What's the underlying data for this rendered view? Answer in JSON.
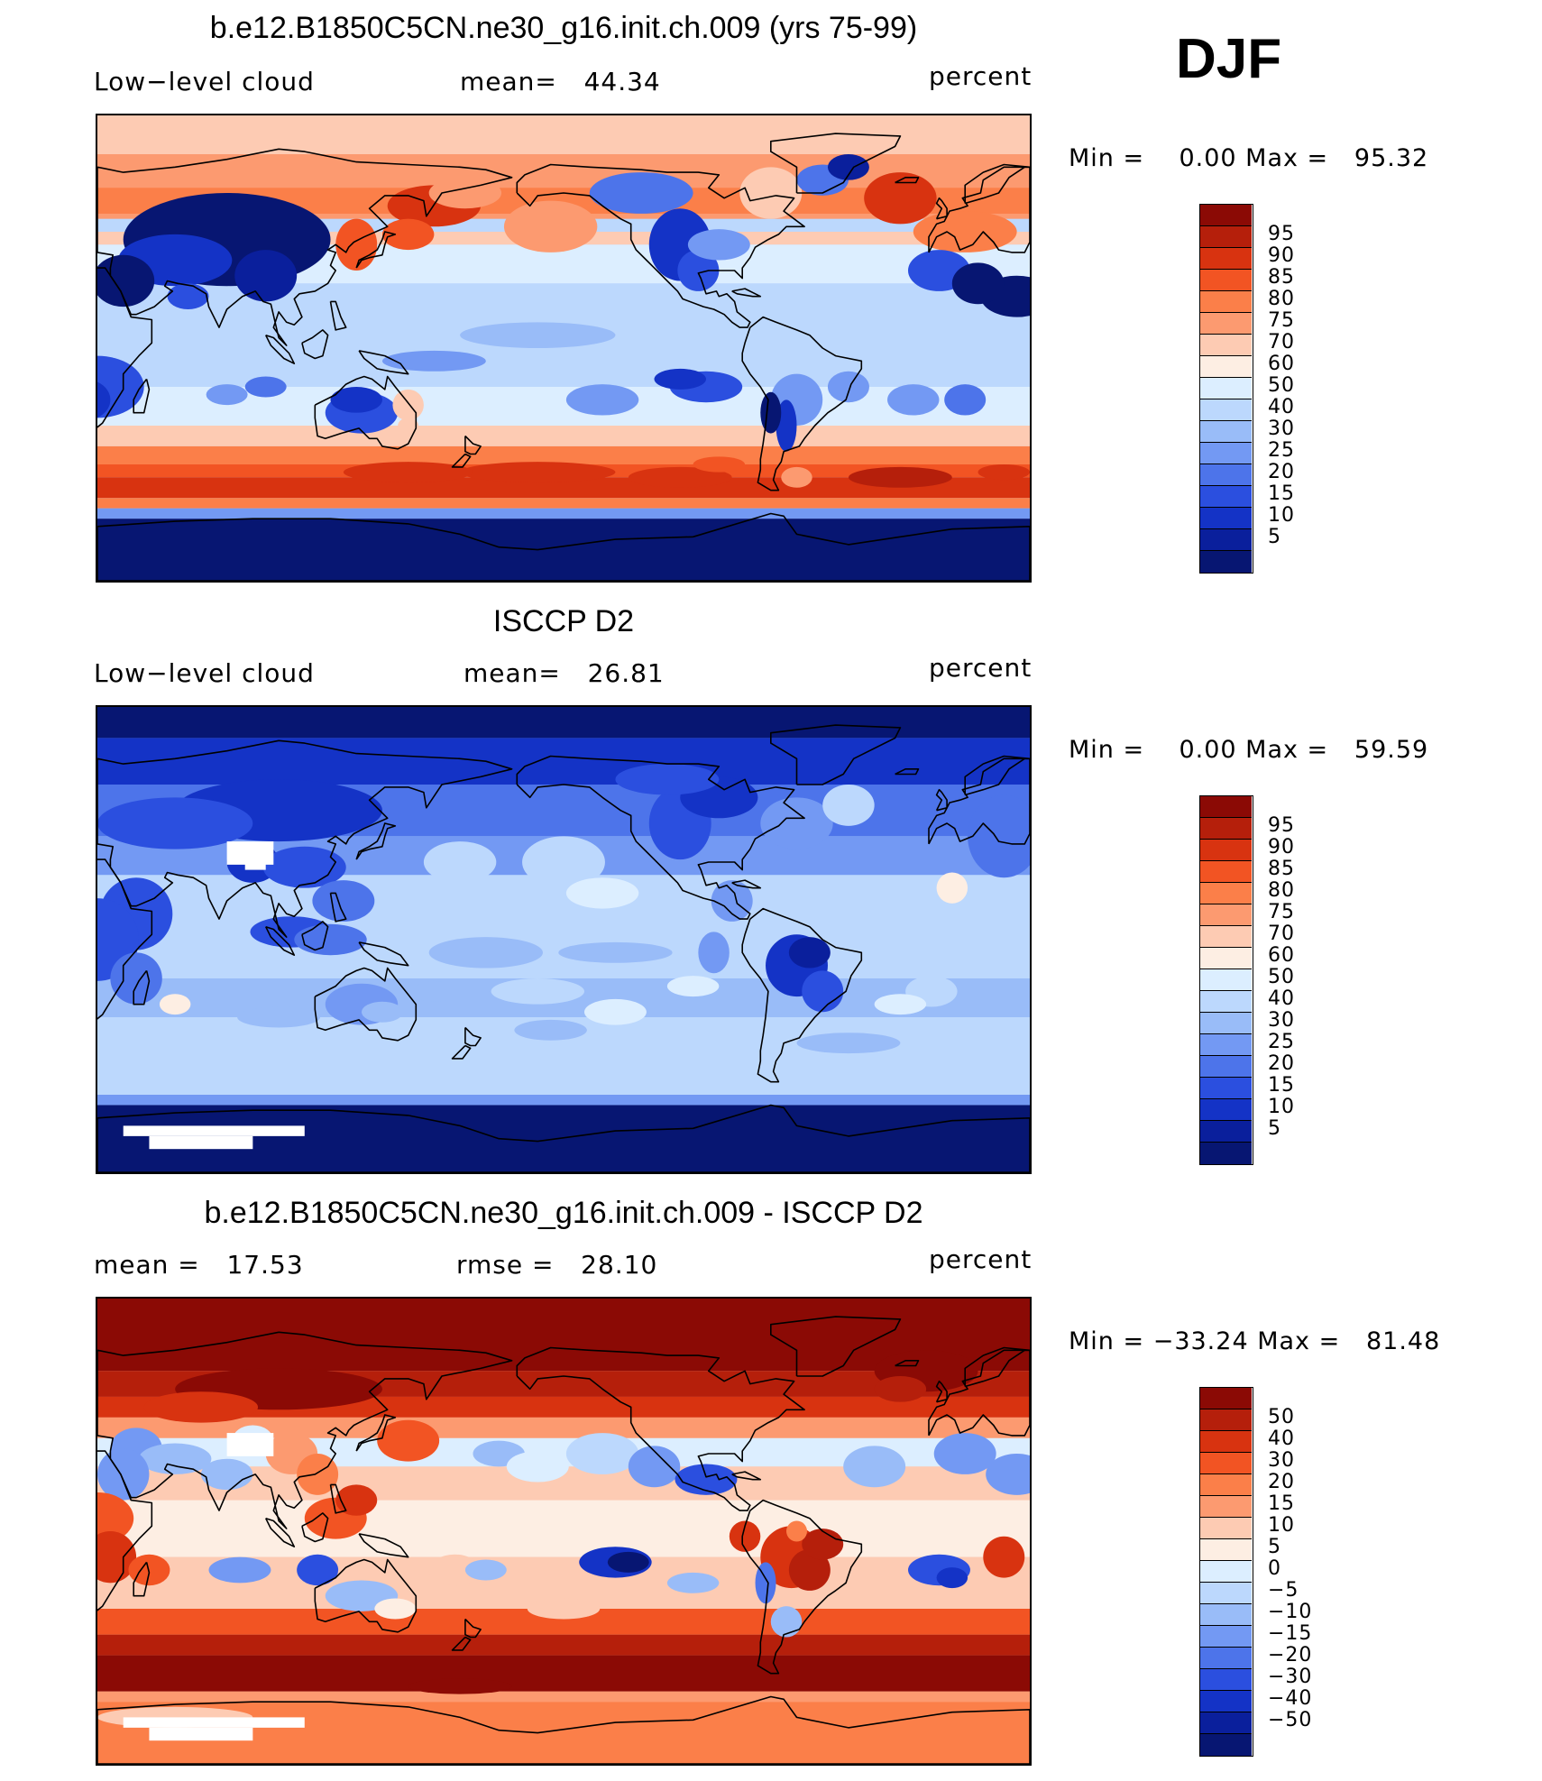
{
  "season": "DJF",
  "panels": [
    {
      "title": "b.e12.B1850C5CN.ne30_g16.init.ch.009 (yrs 75-99)",
      "left_label": "Low−level cloud",
      "center_label": "mean=   44.34",
      "right_label": "percent",
      "minmax": "Min =    0.00 Max =   95.32",
      "map_style": "model",
      "colorbar": {
        "colors": [
          "#8b0a05",
          "#b51f0b",
          "#d83310",
          "#f25423",
          "#fb7f49",
          "#fc9a70",
          "#fdcbb3",
          "#fdeee3",
          "#dceeff",
          "#bcd8fd",
          "#99bcf8",
          "#7399f3",
          "#4d74ea",
          "#2b4fdf",
          "#1433c6",
          "#0a1f9c",
          "#071672"
        ],
        "ticks": [
          "95",
          "90",
          "85",
          "80",
          "75",
          "70",
          "60",
          "50",
          "40",
          "30",
          "25",
          "20",
          "15",
          "10",
          "5"
        ]
      }
    },
    {
      "title": "ISCCP D2",
      "left_label": "Low−level cloud",
      "center_label": "mean=   26.81",
      "right_label": "percent",
      "minmax": "Min =    0.00 Max =   59.59",
      "map_style": "obs",
      "colorbar": {
        "colors": [
          "#8b0a05",
          "#b51f0b",
          "#d83310",
          "#f25423",
          "#fb7f49",
          "#fc9a70",
          "#fdcbb3",
          "#fdeee3",
          "#dceeff",
          "#bcd8fd",
          "#99bcf8",
          "#7399f3",
          "#4d74ea",
          "#2b4fdf",
          "#1433c6",
          "#0a1f9c",
          "#071672"
        ],
        "ticks": [
          "95",
          "90",
          "85",
          "80",
          "75",
          "70",
          "60",
          "50",
          "40",
          "30",
          "25",
          "20",
          "15",
          "10",
          "5"
        ]
      }
    },
    {
      "title": "b.e12.B1850C5CN.ne30_g16.init.ch.009 - ISCCP D2",
      "left_label": "mean =   17.53",
      "center_label": "rmse =   28.10",
      "right_label": "percent",
      "minmax": "Min = −33.24 Max =   81.48",
      "map_style": "diff",
      "colorbar": {
        "colors": [
          "#8b0a05",
          "#b51f0b",
          "#d83310",
          "#f25423",
          "#fb7f49",
          "#fc9a70",
          "#fdcbb3",
          "#fdeee3",
          "#dceeff",
          "#bcd8fd",
          "#99bcf8",
          "#7399f3",
          "#4d74ea",
          "#2b4fdf",
          "#1433c6",
          "#0a1f9c",
          "#071672"
        ],
        "ticks": [
          "50",
          "40",
          "30",
          "20",
          "15",
          "10",
          "5",
          "0",
          "−5",
          "−10",
          "−15",
          "−20",
          "−30",
          "−40",
          "−50"
        ]
      }
    }
  ]
}
